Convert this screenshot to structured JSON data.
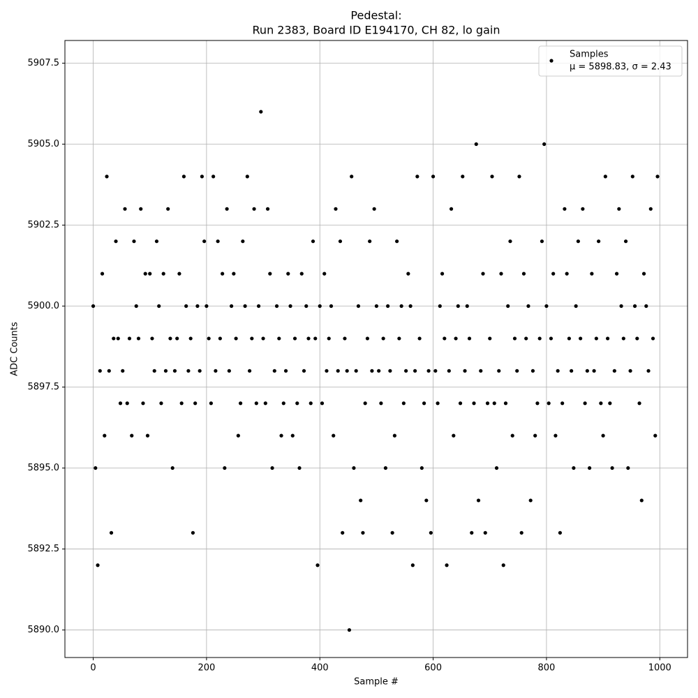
{
  "chart_data": {
    "type": "scatter",
    "title": [
      "Pedestal:",
      "Run 2383, Board ID E194170, CH 82, lo gain"
    ],
    "x_label": "Sample #",
    "y_label": "ADC Counts",
    "xlim": [
      -49.95,
      1048.95
    ],
    "ylim": [
      5889.15,
      5908.2
    ],
    "xticks": [
      0,
      200,
      400,
      600,
      800,
      1000
    ],
    "yticks": [
      {
        "value": 5890,
        "label": "5890.0"
      },
      {
        "value": 5892.5,
        "label": "5892.5"
      },
      {
        "value": 5895,
        "label": "5895.0"
      },
      {
        "value": 5897.5,
        "label": "5897.5"
      },
      {
        "value": 5900,
        "label": "5900.0"
      },
      {
        "value": 5902.5,
        "label": "5902.5"
      },
      {
        "value": 5905,
        "label": "5905.0"
      },
      {
        "value": 5907.5,
        "label": "5907.5"
      }
    ],
    "grid": true,
    "legend_loc": "upper right",
    "series": [
      {
        "name": "Samples",
        "label2": "μ = 5898.83, σ = 2.43",
        "color": "#000000",
        "x": [
          0,
          4,
          8,
          12,
          16,
          20,
          24,
          28,
          32,
          36,
          40,
          44,
          48,
          52,
          56,
          60,
          64,
          68,
          72,
          76,
          80,
          84,
          88,
          92,
          96,
          100,
          104,
          108,
          112,
          116,
          120,
          124,
          128,
          132,
          136,
          140,
          144,
          148,
          152,
          156,
          160,
          164,
          168,
          172,
          176,
          180,
          184,
          188,
          192,
          196,
          200,
          204,
          208,
          212,
          216,
          220,
          224,
          228,
          232,
          236,
          240,
          244,
          248,
          252,
          256,
          260,
          264,
          268,
          272,
          276,
          280,
          284,
          288,
          292,
          296,
          300,
          304,
          308,
          312,
          316,
          320,
          324,
          328,
          332,
          336,
          340,
          344,
          348,
          352,
          356,
          360,
          364,
          368,
          372,
          376,
          380,
          384,
          388,
          392,
          396,
          400,
          404,
          408,
          412,
          416,
          420,
          424,
          428,
          432,
          436,
          440,
          444,
          448,
          452,
          456,
          460,
          464,
          468,
          472,
          476,
          480,
          484,
          488,
          492,
          496,
          500,
          504,
          508,
          512,
          516,
          520,
          524,
          528,
          532,
          536,
          540,
          544,
          548,
          552,
          556,
          560,
          564,
          568,
          572,
          576,
          580,
          584,
          588,
          592,
          596,
          600,
          604,
          608,
          612,
          616,
          620,
          624,
          628,
          632,
          636,
          640,
          644,
          648,
          652,
          656,
          660,
          664,
          668,
          672,
          676,
          680,
          684,
          688,
          692,
          696,
          700,
          704,
          708,
          712,
          716,
          720,
          724,
          728,
          732,
          736,
          740,
          744,
          748,
          752,
          756,
          760,
          764,
          768,
          772,
          776,
          780,
          784,
          788,
          792,
          796,
          800,
          804,
          808,
          812,
          816,
          820,
          824,
          828,
          832,
          836,
          840,
          844,
          848,
          852,
          856,
          860,
          864,
          868,
          872,
          876,
          880,
          884,
          888,
          892,
          896,
          900,
          904,
          908,
          912,
          916,
          920,
          924,
          928,
          932,
          936,
          940,
          944,
          948,
          952,
          956,
          960,
          964,
          968,
          972,
          976,
          980,
          984,
          988,
          992,
          996
        ],
        "values": [
          5900,
          5895,
          5892,
          5898,
          5901,
          5896,
          5904,
          5898,
          5893,
          5899,
          5902,
          5899,
          5897,
          5898,
          5903,
          5897,
          5899,
          5896,
          5902,
          5900,
          5899,
          5903,
          5897,
          5901,
          5896,
          5901,
          5899,
          5898,
          5902,
          5900,
          5897,
          5901,
          5898,
          5903,
          5899,
          5895,
          5898,
          5899,
          5901,
          5897,
          5904,
          5900,
          5898,
          5899,
          5893,
          5897,
          5900,
          5898,
          5904,
          5902,
          5900,
          5899,
          5897,
          5904,
          5898,
          5902,
          5899,
          5901,
          5895,
          5903,
          5898,
          5900,
          5901,
          5899,
          5896,
          5897,
          5902,
          5900,
          5904,
          5898,
          5899,
          5903,
          5897,
          5900,
          5906,
          5899,
          5897,
          5903,
          5901,
          5895,
          5898,
          5900,
          5899,
          5896,
          5897,
          5898,
          5901,
          5900,
          5896,
          5899,
          5897,
          5895,
          5901,
          5898,
          5900,
          5899,
          5897,
          5902,
          5899,
          5892,
          5900,
          5897,
          5901,
          5898,
          5899,
          5900,
          5896,
          5903,
          5898,
          5902,
          5893,
          5899,
          5898,
          5890,
          5904,
          5895,
          5898,
          5900,
          5894,
          5893,
          5897,
          5899,
          5902,
          5898,
          5903,
          5900,
          5898,
          5897,
          5899,
          5895,
          5900,
          5898,
          5893,
          5896,
          5902,
          5899,
          5900,
          5897,
          5898,
          5901,
          5900,
          5892,
          5898,
          5904,
          5899,
          5895,
          5897,
          5894,
          5898,
          5893,
          5904,
          5898,
          5897,
          5900,
          5901,
          5899,
          5892,
          5898,
          5903,
          5896,
          5899,
          5900,
          5897,
          5904,
          5898,
          5900,
          5899,
          5893,
          5897,
          5905,
          5894,
          5898,
          5901,
          5893,
          5897,
          5899,
          5904,
          5897,
          5895,
          5898,
          5901,
          5892,
          5897,
          5900,
          5902,
          5896,
          5899,
          5898,
          5904,
          5893,
          5901,
          5899,
          5900,
          5894,
          5898,
          5896,
          5897,
          5899,
          5902,
          5905,
          5900,
          5897,
          5899,
          5901,
          5896,
          5898,
          5893,
          5897,
          5903,
          5901,
          5899,
          5898,
          5895,
          5900,
          5902,
          5899,
          5903,
          5897,
          5898,
          5895,
          5901,
          5898,
          5899,
          5902,
          5897,
          5896,
          5904,
          5899,
          5897,
          5895,
          5898,
          5901,
          5903,
          5900,
          5899,
          5902,
          5895,
          5898,
          5904,
          5900,
          5899,
          5897,
          5894,
          5901,
          5900,
          5898,
          5903,
          5899,
          5896,
          5904
        ]
      }
    ]
  }
}
